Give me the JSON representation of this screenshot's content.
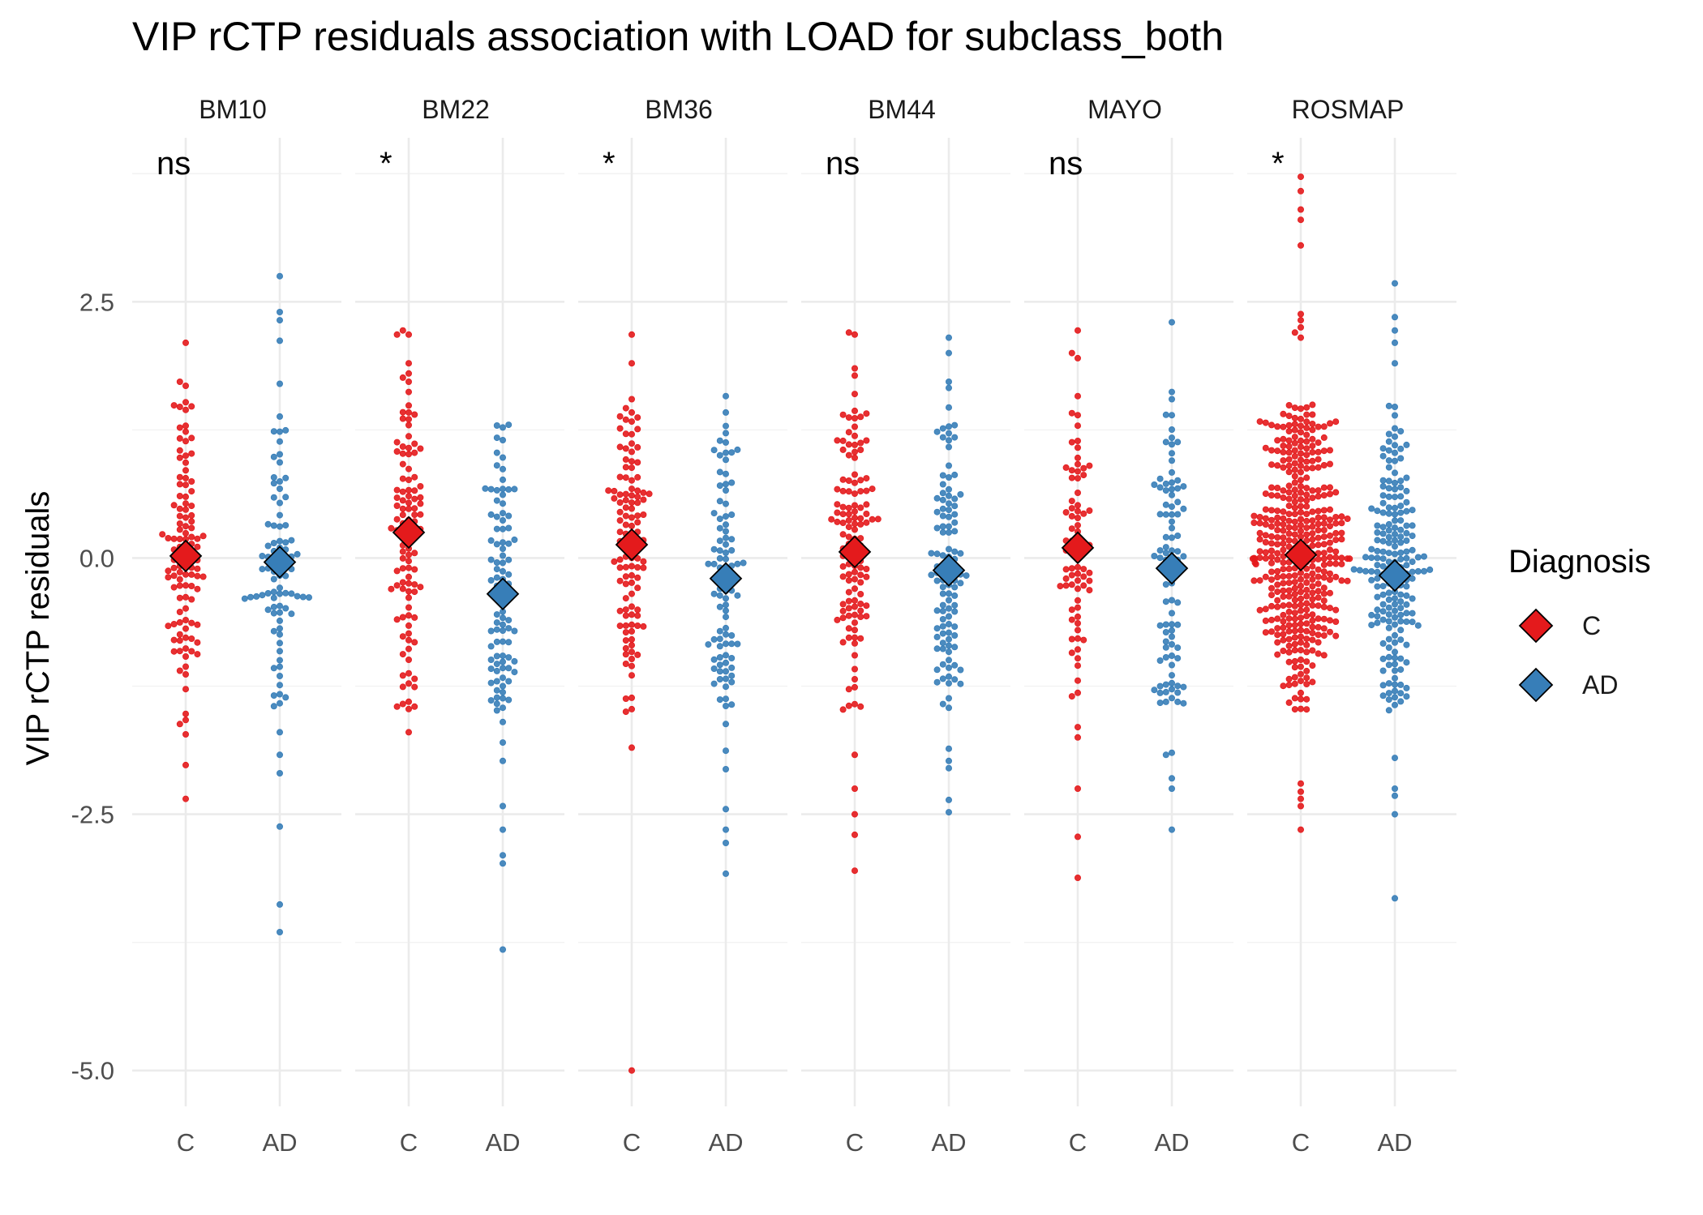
{
  "chart_data": {
    "type": "scatter",
    "title": "VIP rCTP residuals association with LOAD for subclass_both",
    "ylabel": "VIP rCTP residuals",
    "xlabel": "",
    "ylim": [
      -5.35,
      4.1
    ],
    "y_ticks": [
      "2.5",
      "0.0",
      "-2.5",
      "-5.0"
    ],
    "y_tick_values": [
      2.5,
      0.0,
      -2.5,
      -5.0
    ],
    "categories": [
      "C",
      "AD"
    ],
    "grid": true,
    "legend": {
      "title": "Diagnosis",
      "placement": "right",
      "entries": [
        {
          "label": "C",
          "color": "#e41a1c"
        },
        {
          "label": "AD",
          "color": "#377eb8"
        }
      ]
    },
    "colors": {
      "C": "#e41a1c",
      "AD": "#377eb8"
    },
    "panels": [
      {
        "name": "BM10",
        "significance": "ns",
        "n": {
          "C": 115,
          "AD": 95
        },
        "mean": {
          "C": 0.02,
          "AD": -0.04
        },
        "extremes": {
          "C": [
            2.1,
            1.72,
            1.68,
            1.52,
            -1.52,
            -1.58,
            -1.62,
            -1.72,
            -2.02,
            -2.35
          ],
          "AD": [
            2.75,
            2.4,
            2.32,
            2.12,
            1.7,
            -1.7,
            -1.92,
            -2.1,
            -2.62,
            -3.38,
            -3.65
          ]
        }
      },
      {
        "name": "BM22",
        "significance": "*",
        "n": {
          "C": 110,
          "AD": 100
        },
        "mean": {
          "C": 0.25,
          "AD": -0.35
        },
        "extremes": {
          "C": [
            2.22,
            2.18,
            2.18,
            1.9,
            1.8,
            1.76,
            1.72,
            1.62,
            -1.45,
            -1.45,
            -1.7
          ],
          "AD": [
            1.3,
            1.15,
            -1.6,
            -1.8,
            -1.98,
            -2.42,
            -2.65,
            -2.9,
            -2.98,
            -3.82
          ]
        }
      },
      {
        "name": "BM36",
        "significance": "*",
        "n": {
          "C": 115,
          "AD": 95
        },
        "mean": {
          "C": 0.13,
          "AD": -0.2
        },
        "extremes": {
          "C": [
            2.18,
            1.9,
            1.55,
            1.42,
            -1.5,
            -1.85,
            -5.0
          ],
          "AD": [
            1.58,
            1.42,
            -1.62,
            -1.88,
            -2.06,
            -2.45,
            -2.65,
            -2.78,
            -3.08
          ]
        }
      },
      {
        "name": "BM44",
        "significance": "ns",
        "n": {
          "C": 130,
          "AD": 115
        },
        "mean": {
          "C": 0.06,
          "AD": -0.12
        },
        "extremes": {
          "C": [
            2.2,
            2.18,
            1.85,
            1.78,
            1.6,
            -1.45,
            -1.92,
            -2.25,
            -2.5,
            -2.7,
            -3.05
          ],
          "AD": [
            2.15,
            2.0,
            1.72,
            1.66,
            -1.86,
            -1.98,
            -2.05,
            -2.36,
            -2.48
          ]
        }
      },
      {
        "name": "MAYO",
        "significance": "ns",
        "n": {
          "C": 80,
          "AD": 95
        },
        "mean": {
          "C": 0.1,
          "AD": -0.1
        },
        "extremes": {
          "C": [
            2.22,
            2.0,
            1.95,
            1.58,
            -1.65,
            -1.75,
            -2.25,
            -2.72,
            -3.12
          ],
          "AD": [
            2.3,
            1.62,
            1.55,
            -1.28,
            -1.9,
            -1.92,
            -2.15,
            -2.25,
            -2.65
          ]
        }
      },
      {
        "name": "ROSMAP",
        "significance": "*",
        "n": {
          "C": 420,
          "AD": 200
        },
        "mean": {
          "C": 0.03,
          "AD": -0.17
        },
        "extremes": {
          "C": [
            3.72,
            3.58,
            3.4,
            3.3,
            3.05,
            2.38,
            2.32,
            2.25,
            2.2,
            2.15,
            -2.2,
            -2.28,
            -2.35,
            -2.42,
            -2.65
          ],
          "AD": [
            2.68,
            2.35,
            2.22,
            2.1,
            1.9,
            -1.95,
            -2.25,
            -2.32,
            -2.5,
            -3.32
          ]
        }
      }
    ]
  }
}
